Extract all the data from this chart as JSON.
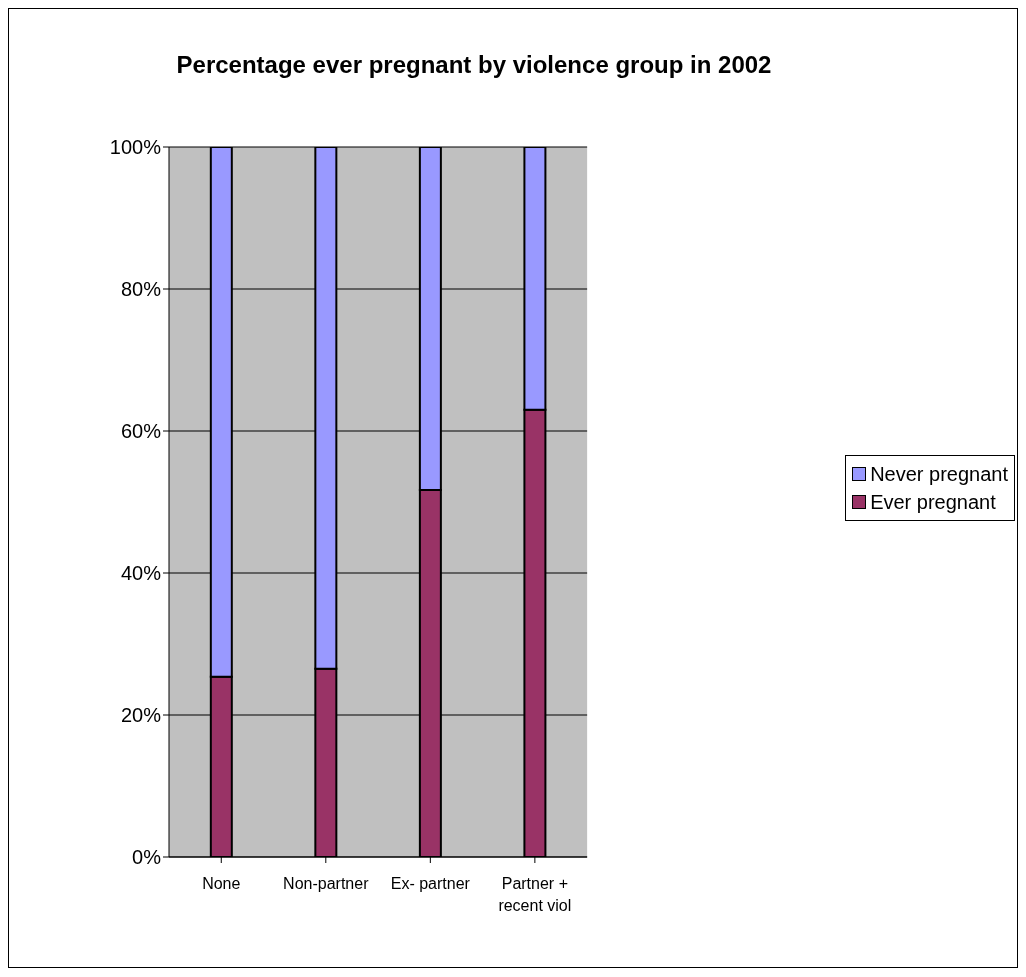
{
  "chart_data": {
    "type": "bar",
    "title": "Percentage ever pregnant by violence group in 2002",
    "categories": [
      "None",
      "Non-partner",
      "Ex- partner",
      "Partner + recent viol"
    ],
    "series": [
      {
        "name": "Ever pregnant",
        "color": "#993366",
        "values": [
          25.4,
          26.5,
          51.7,
          63
        ]
      },
      {
        "name": "Never pregnant",
        "color": "#9999ff",
        "values": [
          74.6,
          73.5,
          48.3,
          37
        ]
      }
    ],
    "stacked": true,
    "ylim": [
      0,
      100
    ],
    "yticks": [
      {
        "value": 0,
        "label": "0%"
      },
      {
        "value": 20,
        "label": "20%"
      },
      {
        "value": 40,
        "label": "40%"
      },
      {
        "value": 60,
        "label": "60%"
      },
      {
        "value": 80,
        "label": "80%"
      },
      {
        "value": 100,
        "label": "100%"
      }
    ],
    "grid": "y",
    "legend": "right"
  }
}
